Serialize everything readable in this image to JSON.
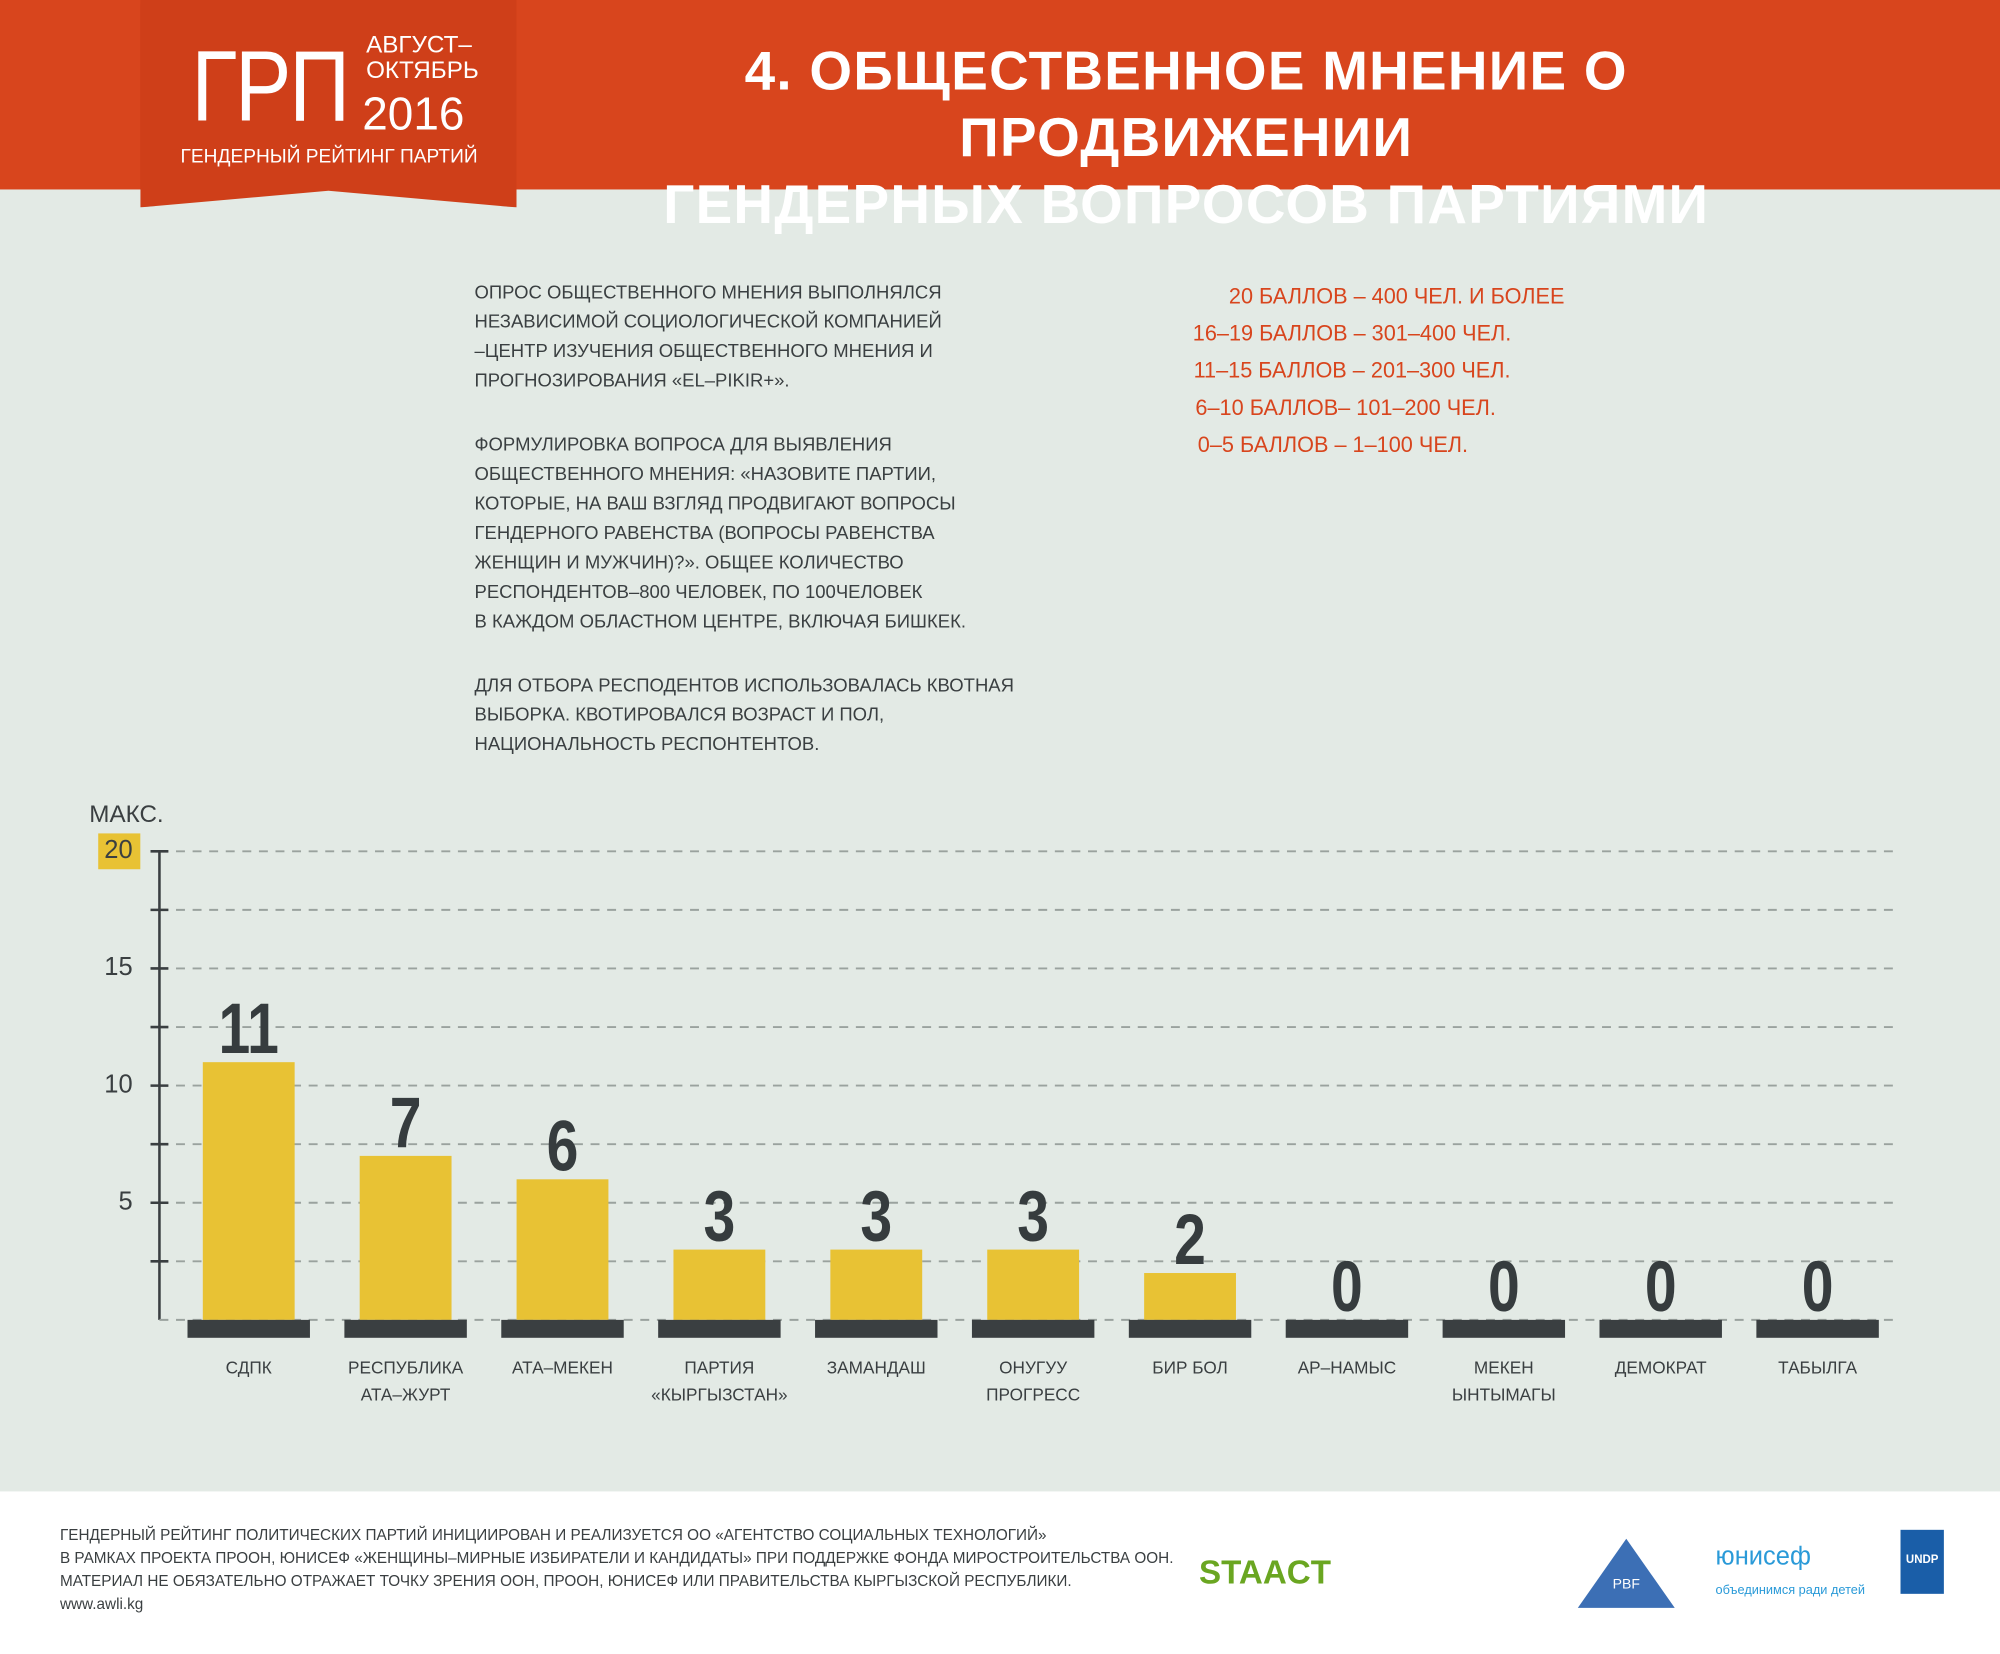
{
  "header": {
    "logo": "ГРП",
    "period": "АВГУСТ–\nОКТЯБРЬ",
    "year": "2016",
    "logo_caption": "ГЕНДЕРНЫЙ РЕЙТИНГ ПАРТИЙ",
    "title": "4. ОБЩЕСТВЕННОЕ МНЕНИЕ О ПРОДВИЖЕНИИ\nГЕНДЕРНЫХ ВОПРОСОВ ПАРТИЯМИ"
  },
  "intro": [
    "ОПРОС ОБЩЕСТВЕННОГО МНЕНИЯ ВЫПОЛНЯЛСЯ\nНЕЗАВИСИМОЙ СОЦИОЛОГИЧЕСКОЙ КОМПАНИЕЙ\n–ЦЕНТР ИЗУЧЕНИЯ ОБЩЕСТВЕННОГО МНЕНИЯ И\nПРОГНОЗИРОВАНИЯ «EL–PIKIR+».",
    "ФОРМУЛИРОВКА ВОПРОСА ДЛЯ ВЫЯВЛЕНИЯ\nОБЩЕСТВЕННОГО МНЕНИЯ: «НАЗОВИТЕ ПАРТИИ,\nКОТОРЫЕ, НА ВАШ ВЗГЛЯД ПРОДВИГАЮТ ВОПРОСЫ\nГЕНДЕРНОГО РАВЕНСТВА (ВОПРОСЫ РАВЕНСТВА\nЖЕНЩИН И МУЖЧИН)?». ОБЩЕЕ КОЛИЧЕСТВО\nРЕСПОНДЕНТОВ–800 ЧЕЛОВЕК, ПО 100ЧЕЛОВЕК\nВ КАЖДОМ ОБЛАСТНОМ ЦЕНТРЕ, ВКЛЮЧАЯ БИШКЕК.",
    "ДЛЯ ОТБОРА РЕСПОДЕНТОВ ИСПОЛЬЗОВАЛАСЬ КВОТНАЯ\nВЫБОРКА. КВОТИРОВАЛСЯ ВОЗРАСТ И ПОЛ,\nНАЦИОНАЛЬНОСТЬ РЕСПОНТЕНТОВ."
  ],
  "scale_legend": [
    "20 БАЛЛОВ – 400 ЧЕЛ. И БОЛЕЕ",
    "16–19 БАЛЛОВ – 301–400 ЧЕЛ.",
    "11–15 БАЛЛОВ – 201–300 ЧЕЛ.",
    "6–10 БАЛЛОВ– 101–200 ЧЕЛ.",
    "0–5 БАЛЛОВ – 1–100 ЧЕЛ."
  ],
  "chart_data": {
    "type": "bar",
    "y_label": "МАКС.",
    "categories": [
      "СДПК",
      "РЕСПУБЛИКА\nАТА–ЖУРТ",
      "АТА–МЕКЕН",
      "ПАРТИЯ\n«КЫРГЫЗСТАН»",
      "ЗАМАНДАШ",
      "ОНУГУУ\nПРОГРЕСС",
      "БИР БОЛ",
      "АР–НАМЫС",
      "МЕКЕН\nЫНТЫМАГЫ",
      "ДЕМОКРАТ",
      "ТАБЫЛГА"
    ],
    "values": [
      11,
      7,
      6,
      3,
      3,
      3,
      2,
      0,
      0,
      0,
      0
    ],
    "color": "#e8c234",
    "base_color": "#3a3f41",
    "label_color": "#363c3e",
    "ylim": [
      0,
      20
    ],
    "yticks": [
      5,
      10,
      15,
      20
    ],
    "grid": true
  },
  "footer": {
    "text": "ГЕНДЕРНЫЙ РЕЙТИНГ ПОЛИТИЧЕСКИХ ПАРТИЙ ИНИЦИИРОВАН И РЕАЛИЗУЕТСЯ ОО «АГЕНТСТВО СОЦИАЛЬНЫХ ТЕХНОЛОГИЙ»\nВ РАМКАХ ПРОЕКТА ПРООН, ЮНИСЕФ «ЖЕНЩИНЫ–МИРНЫЕ ИЗБИРАТЕЛИ И КАНДИДАТЫ» ПРИ ПОДДЕРЖКЕ ФОНДА МИРОСТРОИТЕЛЬСТВА ООН.\nМАТЕРИАЛ НЕ ОБЯЗАТЕЛЬНО ОТРАЖАЕТ ТОЧКУ ЗРЕНИЯ ООН, ПРООН, ЮНИСЕФ ИЛИ ПРАВИТЕЛЬСТВА КЫРГЫЗСКОЙ РЕСПУБЛИКИ.\nwww.awli.kg",
    "logos": [
      "STAACT",
      "PBF",
      "юнисеф",
      "объединимся ради детей",
      "UNDP"
    ]
  }
}
